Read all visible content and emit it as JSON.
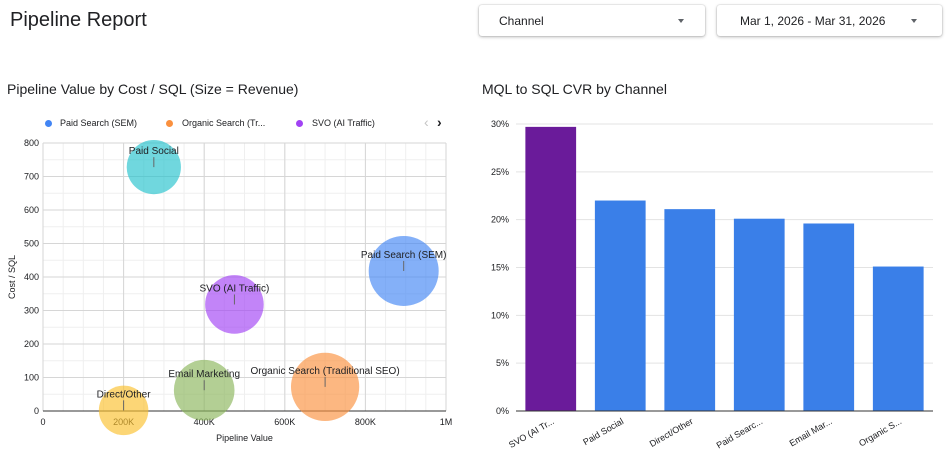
{
  "header": {
    "title": "Pipeline Report",
    "channel_filter": "Channel",
    "date_filter": "Mar 1, 2026 - Mar 31, 2026"
  },
  "colors": {
    "paid_search": "#4285f4",
    "organic_search": "#fa903e",
    "svo": "#a142f4",
    "email": "#8ab65a",
    "direct": "#fbc02d",
    "paid_social": "#24c1cc",
    "bar_default": "#3a7fe8",
    "bar_highlight": "#6a1b9a"
  },
  "left_panel": {
    "title": "Pipeline Value by Cost / SQL (Size = Revenue)",
    "legend": [
      {
        "label": "Paid Search (SEM)",
        "color": "#4285f4"
      },
      {
        "label": "Organic Search (Tr...",
        "color": "#fa903e"
      },
      {
        "label": "SVO (AI Traffic)",
        "color": "#a142f4"
      }
    ],
    "legend_prev": "‹",
    "legend_next": "›"
  },
  "right_panel": {
    "title": "MQL to SQL CVR by Channel"
  },
  "chart_data": [
    {
      "type": "scatter",
      "title": "Pipeline Value by Cost / SQL (Size = Revenue)",
      "xlabel": "Pipeline Value",
      "ylabel": "Cost / SQL",
      "xlim": [
        0,
        1000000
      ],
      "ylim": [
        0,
        800
      ],
      "x_ticks": [
        0,
        200000,
        400000,
        600000,
        800000,
        1000000
      ],
      "x_tick_labels": [
        "0",
        "200K",
        "400K",
        "600K",
        "800K",
        "1M"
      ],
      "y_ticks": [
        0,
        100,
        200,
        300,
        400,
        500,
        600,
        700,
        800
      ],
      "y_tick_labels": [
        "0",
        "100",
        "200",
        "300",
        "400",
        "500",
        "600",
        "700",
        "800"
      ],
      "grid": true,
      "legend_position": "top",
      "points": [
        {
          "label": "Paid Social",
          "x": 275000,
          "y": 728,
          "size": 0.6,
          "color": "#24c1cc"
        },
        {
          "label": "Paid Search (SEM)",
          "x": 895000,
          "y": 418,
          "size": 1.0,
          "color": "#4285f4"
        },
        {
          "label": "SVO (AI Traffic)",
          "x": 475000,
          "y": 318,
          "size": 0.7,
          "color": "#a142f4"
        },
        {
          "label": "Email Marketing",
          "x": 400000,
          "y": 62,
          "size": 0.75,
          "color": "#8ab65a"
        },
        {
          "label": "Organic Search (Traditional SEO)",
          "x": 700000,
          "y": 72,
          "size": 0.95,
          "color": "#fa903e"
        },
        {
          "label": "Direct/Other",
          "x": 200000,
          "y": 2,
          "size": 0.5,
          "color": "#fbc02d"
        }
      ]
    },
    {
      "type": "bar",
      "title": "MQL to SQL CVR by Channel",
      "categories": [
        "SVO (AI Tr...",
        "Paid Social",
        "Direct/Other",
        "Paid Searc...",
        "Email Mar...",
        "Organic S..."
      ],
      "values": [
        29.7,
        22.0,
        21.1,
        20.1,
        19.6,
        15.1
      ],
      "bar_colors": [
        "#6a1b9a",
        "#3a7fe8",
        "#3a7fe8",
        "#3a7fe8",
        "#3a7fe8",
        "#3a7fe8"
      ],
      "ylim": [
        0,
        30
      ],
      "y_ticks": [
        0,
        5,
        10,
        15,
        20,
        25,
        30
      ],
      "y_tick_labels": [
        "0%",
        "5%",
        "10%",
        "15%",
        "20%",
        "25%",
        "30%"
      ],
      "grid": true
    }
  ]
}
